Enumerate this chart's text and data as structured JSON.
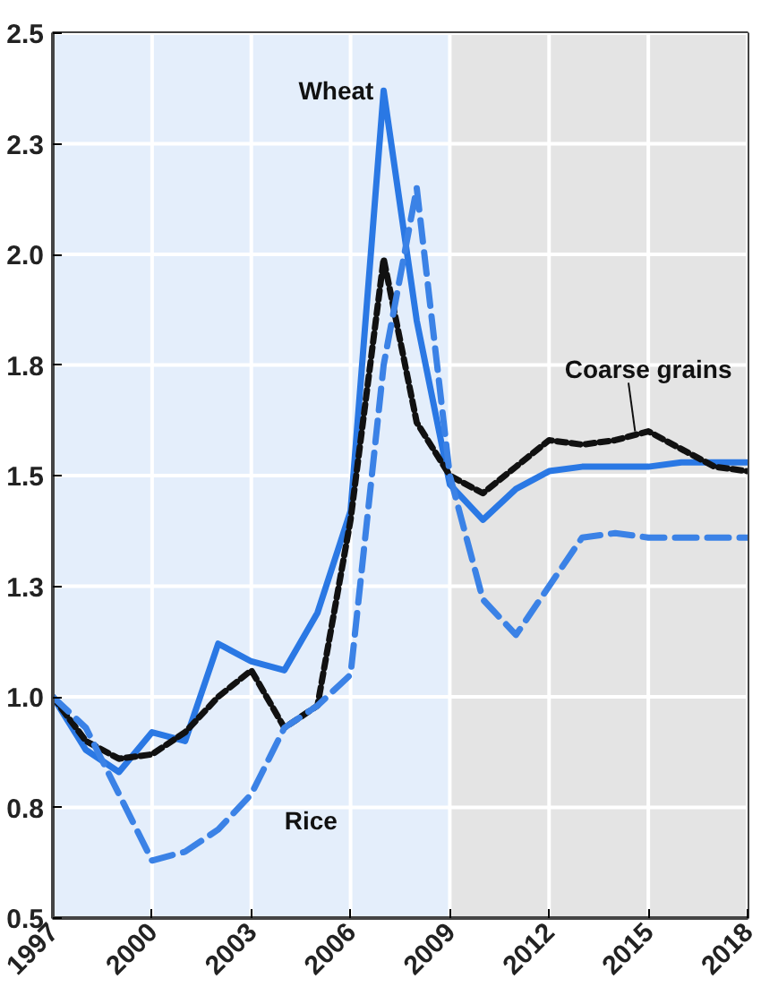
{
  "chart_data": {
    "type": "line",
    "x": [
      1997,
      1998,
      1999,
      2000,
      2001,
      2002,
      2003,
      2004,
      2005,
      2006,
      2007,
      2008,
      2009,
      2010,
      2011,
      2012,
      2013,
      2014,
      2015,
      2016,
      2017,
      2018
    ],
    "series": [
      {
        "name": "Wheat",
        "color": "#2a78e4",
        "line_style": "solid",
        "values": [
          1.0,
          0.88,
          0.83,
          0.92,
          0.9,
          1.12,
          1.08,
          1.06,
          1.19,
          1.42,
          2.37,
          1.85,
          1.48,
          1.4,
          1.47,
          1.51,
          1.52,
          1.52,
          1.52,
          1.53,
          1.53,
          1.53
        ]
      },
      {
        "name": "Coarse grains",
        "color": "#111111",
        "line_style": "dotted",
        "values": [
          1.0,
          0.9,
          0.86,
          0.87,
          0.92,
          1.0,
          1.06,
          0.93,
          0.98,
          1.4,
          1.99,
          1.62,
          1.5,
          1.46,
          1.52,
          1.58,
          1.57,
          1.58,
          1.6,
          1.56,
          1.52,
          1.51
        ]
      },
      {
        "name": "Rice",
        "color": "#3b82e6",
        "line_style": "dashed",
        "values": [
          1.0,
          0.93,
          0.78,
          0.63,
          0.65,
          0.7,
          0.78,
          0.93,
          0.98,
          1.05,
          1.75,
          2.15,
          1.5,
          1.22,
          1.14,
          1.25,
          1.36,
          1.37,
          1.36,
          1.36,
          1.36,
          1.36
        ]
      }
    ],
    "xlim": [
      1997,
      2018
    ],
    "ylim": [
      0.5,
      2.5
    ],
    "xticks": [
      1997,
      2000,
      2003,
      2006,
      2009,
      2012,
      2015,
      2018
    ],
    "yticks": [
      0.5,
      {
        "value": 0.75,
        "label": "0.8"
      },
      {
        "value": 1.0,
        "label": "1.0"
      },
      {
        "value": 1.25,
        "label": "1.3"
      },
      1.5,
      {
        "value": 1.75,
        "label": "1.8"
      },
      {
        "value": 2.0,
        "label": "2.0"
      },
      {
        "value": 2.25,
        "label": "2.3"
      },
      2.5
    ],
    "bands": [
      {
        "axis": "x",
        "from": 1997,
        "to": 2009,
        "color": "#e4eefb"
      },
      {
        "axis": "x",
        "from": 2009,
        "to": 2018,
        "color": "#e4e4e4"
      }
    ],
    "grid": true
  }
}
